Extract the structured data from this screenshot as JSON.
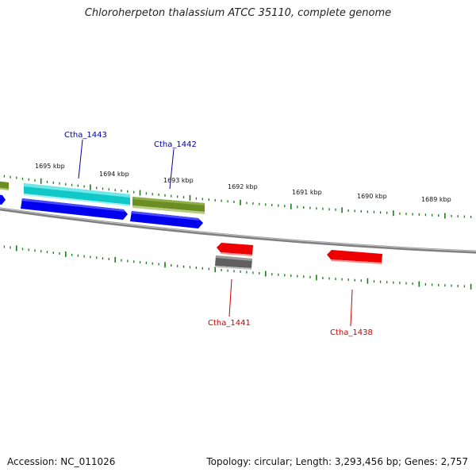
{
  "title": "Chloroherpeton thalassium ATCC 35110, complete genome",
  "footer": {
    "accession": "Accession: NC_011026",
    "summary": "Topology: circular; Length: 3,293,456 bp; Genes: 2,757"
  },
  "colors": {
    "backbone": "#808080",
    "ticks": "#1a7a1a",
    "blue": "#0000ee",
    "cyan": "#10c8c8",
    "olive": "#6b8e23",
    "red": "#ee0000",
    "gray_gene": "#606060",
    "label_blue": "#000099",
    "label_red": "#cc0000"
  },
  "scale_labels": [
    "1695 kbp",
    "1694 kbp",
    "1693 kbp",
    "1692 kbp",
    "1691 kbp",
    "1690 kbp",
    "1689 kbp"
  ],
  "gene_labels": {
    "ctha_1443": "Ctha_1443",
    "ctha_1442": "Ctha_1442",
    "ctha_1441": "Ctha_1441",
    "ctha_1438": "Ctha_1438"
  }
}
